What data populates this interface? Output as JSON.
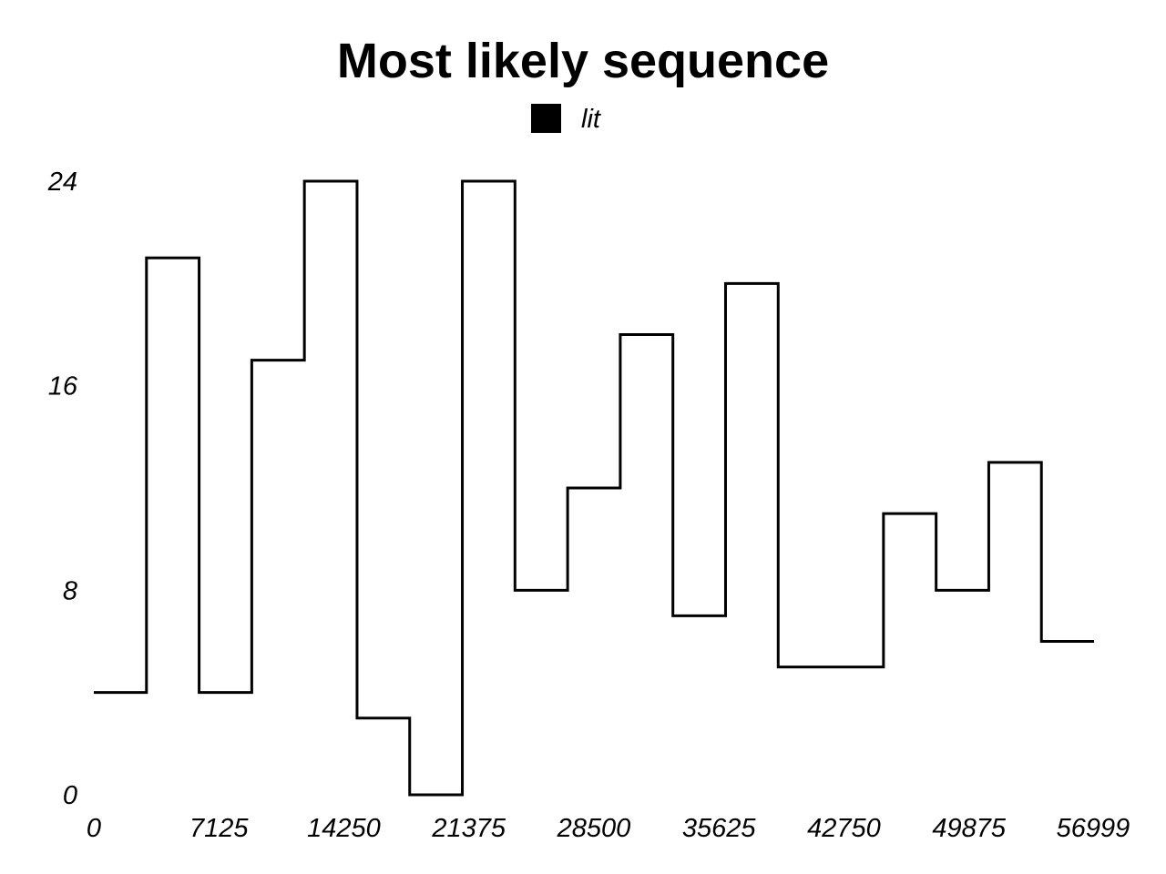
{
  "chart_data": {
    "type": "line",
    "style": "step",
    "title": "Most likely sequence",
    "legend": {
      "placement": "top-center",
      "entries": [
        {
          "name": "lit",
          "color": "#000000"
        }
      ]
    },
    "x_ticks": [
      "0",
      "7125",
      "14250",
      "21375",
      "28500",
      "35625",
      "42750",
      "49875",
      "56999"
    ],
    "y_ticks": [
      "0",
      "8",
      "16",
      "24"
    ],
    "xlim": [
      0,
      56999
    ],
    "ylim": [
      0,
      24
    ],
    "grid": false,
    "series": [
      {
        "name": "lit",
        "color": "#000000",
        "x": [
          0,
          3000,
          6000,
          9000,
          12000,
          15000,
          18000,
          21000,
          24000,
          27000,
          30000,
          33000,
          36000,
          39000,
          42000,
          45000,
          48000,
          51000,
          54000
        ],
        "values": [
          4,
          21,
          4,
          17,
          24,
          3,
          0,
          24,
          8,
          12,
          18,
          7,
          20,
          5,
          5,
          11,
          8,
          13,
          6
        ],
        "end_x": 57000
      }
    ]
  }
}
